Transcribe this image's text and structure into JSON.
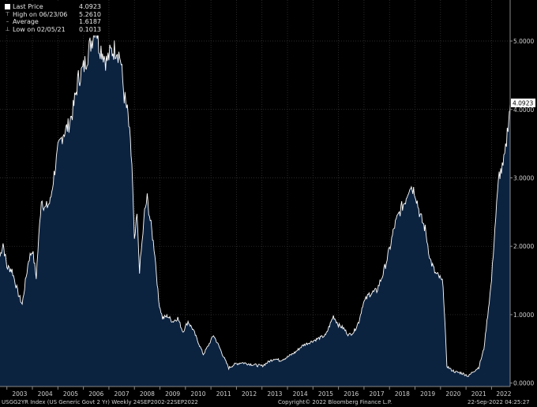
{
  "legend": {
    "last_price_label": "Last Price",
    "last_price_value": "4.0923",
    "high_label": "High on 06/23/06",
    "high_value": "5.2610",
    "average_label": "Average",
    "average_value": "1.6187",
    "low_label": "Low on 02/05/21",
    "low_value": "0.1013"
  },
  "footer": {
    "left": "USGG2YR Index (US Generic Govt 2 Yr)  Weekly 24SEP2002-22SEP2022",
    "center": "Copyright© 2022 Bloomberg Finance L.P.",
    "right": "22-Sep-2022 04:25:27"
  },
  "colors": {
    "background": "#000000",
    "area_fill": "#0c2340",
    "line": "#ffffff",
    "grid": "#3a3a3a",
    "last_price_badge": "#ffffff"
  },
  "chart_data": {
    "type": "area",
    "ylim": [
      -0.05,
      5.6
    ],
    "xlim": [
      2002.73,
      2022.73
    ],
    "grid": true,
    "y_axis_side": "right",
    "yticks": [
      "0.0000",
      "1.0000",
      "2.0000",
      "3.0000",
      "4.0000",
      "5.0000"
    ],
    "ytick_values": [
      0,
      1,
      2,
      3,
      4,
      5
    ],
    "xticks": [
      "2003",
      "2004",
      "2005",
      "2006",
      "2007",
      "2008",
      "2009",
      "2010",
      "2011",
      "2012",
      "2013",
      "2014",
      "2015",
      "2016",
      "2017",
      "2018",
      "2019",
      "2020",
      "2021",
      "2022"
    ],
    "last_price_label": "4.0923",
    "series": [
      {
        "x": [
          2002.73,
          2002.85,
          2003.0,
          2003.2,
          2003.45,
          2003.6,
          2003.85,
          2004.0,
          2004.15,
          2004.35,
          2004.5,
          2004.7,
          2004.85,
          2005.0,
          2005.2,
          2005.4,
          2005.6,
          2005.8,
          2006.0,
          2006.2,
          2006.35,
          2006.48,
          2006.6,
          2006.75,
          2006.9,
          2007.1,
          2007.3,
          2007.45,
          2007.6,
          2007.75,
          2007.9,
          2008.0,
          2008.1,
          2008.2,
          2008.3,
          2008.4,
          2008.5,
          2008.65,
          2008.8,
          2008.95,
          2009.1,
          2009.3,
          2009.5,
          2009.7,
          2009.9,
          2010.1,
          2010.3,
          2010.5,
          2010.7,
          2010.9,
          2011.1,
          2011.3,
          2011.5,
          2011.7,
          2011.9,
          2012.2,
          2012.5,
          2012.8,
          2013.0,
          2013.3,
          2013.5,
          2013.7,
          2014.0,
          2014.3,
          2014.6,
          2014.9,
          2015.2,
          2015.5,
          2015.8,
          2016.0,
          2016.2,
          2016.4,
          2016.6,
          2016.8,
          2016.95,
          2017.2,
          2017.5,
          2017.75,
          2018.0,
          2018.2,
          2018.45,
          2018.6,
          2018.8,
          2019.0,
          2019.2,
          2019.4,
          2019.6,
          2019.8,
          2019.95,
          2020.1,
          2020.25,
          2020.4,
          2020.6,
          2020.8,
          2021.0,
          2021.1,
          2021.25,
          2021.5,
          2021.7,
          2021.85,
          2022.0,
          2022.1,
          2022.2,
          2022.3,
          2022.45,
          2022.55,
          2022.65,
          2022.7,
          2022.73
        ],
        "y": [
          1.85,
          2.05,
          1.7,
          1.65,
          1.3,
          1.15,
          1.8,
          1.95,
          1.55,
          2.7,
          2.55,
          2.65,
          3.05,
          3.4,
          3.65,
          3.75,
          4.0,
          4.45,
          4.6,
          4.85,
          5.05,
          5.26,
          4.95,
          4.85,
          4.7,
          4.85,
          4.9,
          4.75,
          4.2,
          3.9,
          3.2,
          2.05,
          2.45,
          1.65,
          2.05,
          2.5,
          2.7,
          2.3,
          1.9,
          1.2,
          0.95,
          0.98,
          0.9,
          0.95,
          0.75,
          0.9,
          0.78,
          0.6,
          0.42,
          0.55,
          0.7,
          0.55,
          0.38,
          0.22,
          0.27,
          0.3,
          0.28,
          0.26,
          0.25,
          0.32,
          0.36,
          0.33,
          0.38,
          0.45,
          0.55,
          0.6,
          0.65,
          0.7,
          0.98,
          0.85,
          0.8,
          0.7,
          0.75,
          0.9,
          1.15,
          1.3,
          1.35,
          1.6,
          1.95,
          2.3,
          2.55,
          2.65,
          2.9,
          2.8,
          2.45,
          2.25,
          1.8,
          1.6,
          1.55,
          1.45,
          0.25,
          0.2,
          0.16,
          0.15,
          0.12,
          0.1,
          0.16,
          0.23,
          0.5,
          1.0,
          1.5,
          2.1,
          2.6,
          3.05,
          3.15,
          3.4,
          3.8,
          3.95,
          4.09
        ]
      }
    ]
  }
}
